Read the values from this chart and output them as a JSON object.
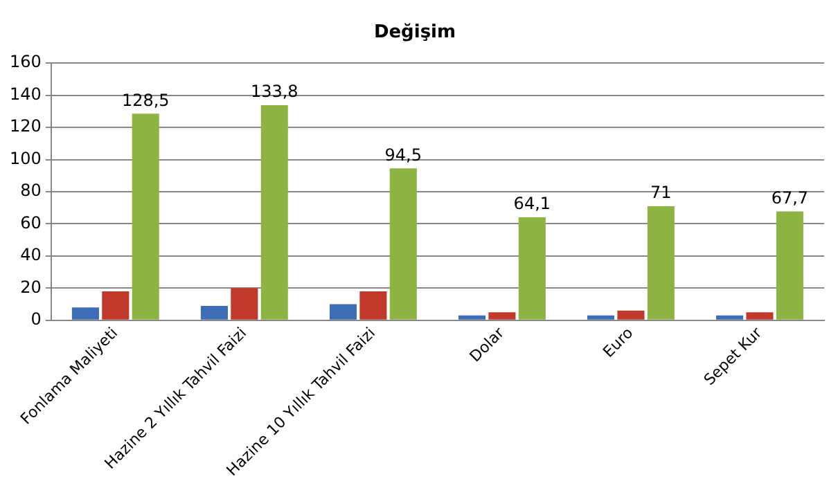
{
  "chart_data": {
    "type": "bar",
    "title": "Değişim",
    "categories": [
      "Fonlama Maliyeti",
      "Hazine 2 Yıllık Tahvil Faizi",
      "Hazine 10 Yıllık Tahvil Faizi",
      "Dolar",
      "Euro",
      "Sepet Kur"
    ],
    "series": [
      {
        "color": "#3d6db5",
        "values": [
          8,
          9,
          10,
          3,
          3,
          3
        ]
      },
      {
        "color": "#c0392b",
        "values": [
          18,
          20,
          18,
          5,
          6,
          5
        ]
      },
      {
        "color": "#8db443",
        "values": [
          128.5,
          133.8,
          94.5,
          64.1,
          71,
          67.7
        ],
        "value_labels": [
          "128,5",
          "133,8",
          "94,5",
          "64,1",
          "71",
          "67,7"
        ]
      }
    ],
    "ylim": [
      0,
      160
    ],
    "yticks": [
      0,
      20,
      40,
      60,
      80,
      100,
      120,
      140,
      160
    ],
    "grid": "y",
    "legend": false
  }
}
